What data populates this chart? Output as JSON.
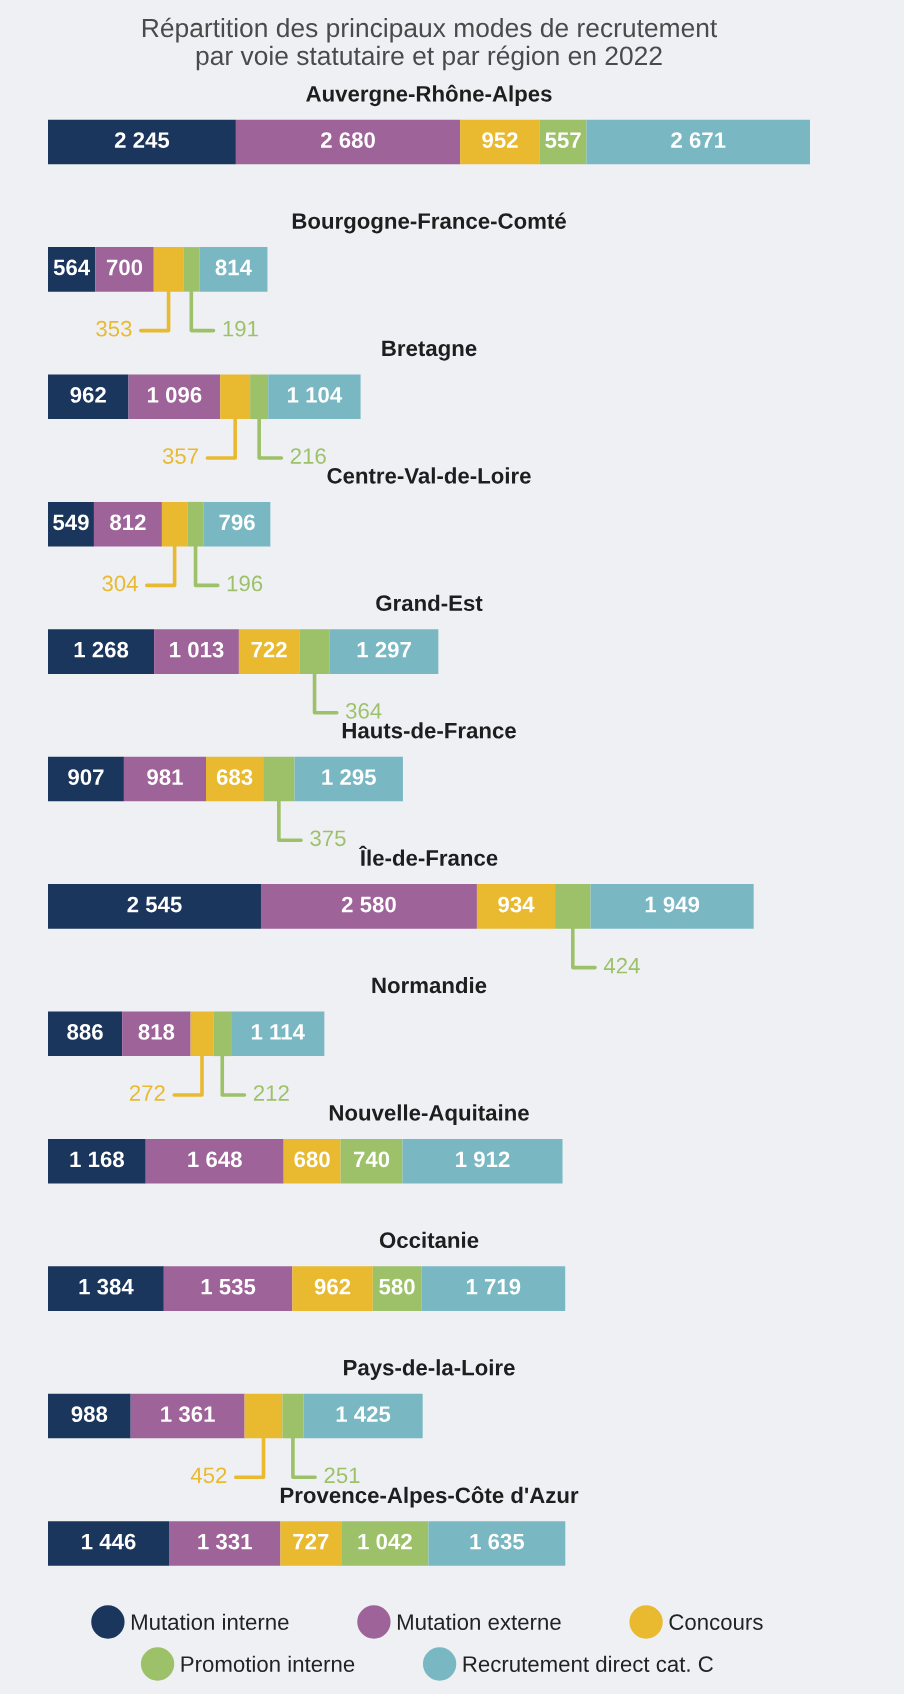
{
  "chart_data": {
    "type": "bar",
    "orientation": "horizontal",
    "stacked": true,
    "legend": "bottom",
    "title": "Répartition des principaux modes de recrutement\npar voie statutaire et par région en 2022",
    "categories": [
      "Auvergne-Rhône-Alpes",
      "Bourgogne-France-Comté",
      "Bretagne",
      "Centre-Val-de-Loire",
      "Grand-Est",
      "Hauts-de-France",
      "Île-de-France",
      "Normandie",
      "Nouvelle-Aquitaine",
      "Occitanie",
      "Pays-de-la-Loire",
      "Provence-Alpes-Côte d'Azur"
    ],
    "series": [
      {
        "name": "Mutation interne",
        "color": "#1b365d",
        "values": [
          2245,
          564,
          962,
          549,
          1268,
          907,
          2545,
          886,
          1168,
          1384,
          988,
          1446
        ],
        "value_labels": [
          "2 245",
          "564",
          "962",
          "549",
          "1 268",
          "907",
          "2 545",
          "886",
          "1 168",
          "1 384",
          "988",
          "1 446"
        ]
      },
      {
        "name": "Mutation externe",
        "color": "#9e6399",
        "values": [
          2680,
          700,
          1096,
          812,
          1013,
          981,
          2580,
          818,
          1648,
          1535,
          1361,
          1331
        ],
        "value_labels": [
          "2 680",
          "700",
          "1 096",
          "812",
          "1 013",
          "981",
          "2 580",
          "818",
          "1 648",
          "1 535",
          "1 361",
          "1 331"
        ]
      },
      {
        "name": "Concours",
        "color": "#e9b92f",
        "values": [
          952,
          353,
          357,
          304,
          722,
          683,
          934,
          272,
          680,
          962,
          452,
          727
        ],
        "value_labels": [
          "952",
          "353",
          "357",
          "304",
          "722",
          "683",
          "934",
          "272",
          "680",
          "962",
          "452",
          "727"
        ]
      },
      {
        "name": "Promotion interne",
        "color": "#9dc168",
        "values": [
          557,
          191,
          216,
          196,
          364,
          375,
          424,
          212,
          740,
          580,
          251,
          1042
        ],
        "value_labels": [
          "557",
          "191",
          "216",
          "196",
          "364",
          "375",
          "424",
          "212",
          "740",
          "580",
          "251",
          "1 042"
        ]
      },
      {
        "name": "Recrutement direct cat. C",
        "color": "#79b8c3",
        "values": [
          2671,
          814,
          1104,
          796,
          1297,
          1295,
          1949,
          1114,
          1912,
          1719,
          1425,
          1635
        ],
        "value_labels": [
          "2 671",
          "814",
          "1 104",
          "796",
          "1 297",
          "1 295",
          "1 949",
          "1 114",
          "1 912",
          "1 719",
          "1 425",
          "1 635"
        ]
      }
    ]
  }
}
